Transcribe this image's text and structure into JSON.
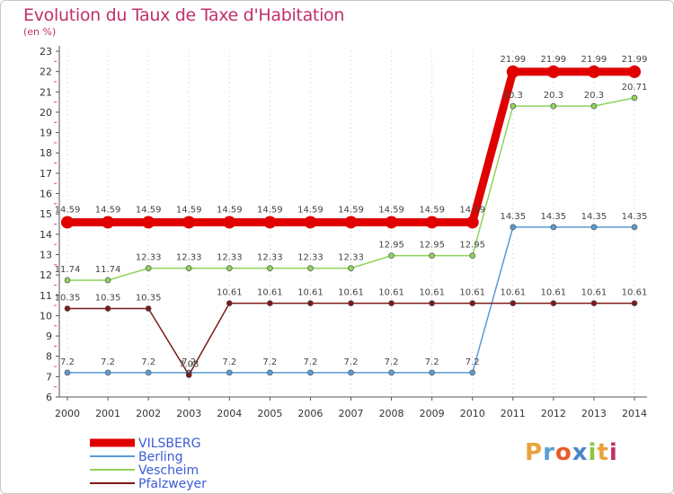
{
  "title": "Evolution du Taux de Taxe d'Habitation",
  "unit_label": "(en %)",
  "colors": {
    "title": "#c0306a",
    "axis": "#555555",
    "gridDot": "#cccccc"
  },
  "logo": {
    "letters": [
      "P",
      "r",
      "o",
      "x",
      "i",
      "t",
      "i"
    ],
    "colors": [
      "#e8a43a",
      "#5aa0d6",
      "#e65c2a",
      "#4a86c8",
      "#8cc63f",
      "#e8a43a",
      "#c0306a"
    ]
  },
  "chart_data": {
    "type": "line",
    "title": "Evolution du Taux de Taxe d'Habitation",
    "ylabel": "(en %)",
    "xlabel": "",
    "x": [
      "2000",
      "2001",
      "2002",
      "2003",
      "2004",
      "2005",
      "2006",
      "2007",
      "2008",
      "2009",
      "2010",
      "2011",
      "2012",
      "2013",
      "2014"
    ],
    "ylim": [
      6,
      23
    ],
    "yticks": [
      "6",
      "7",
      "8",
      "9",
      "10",
      "11",
      "12",
      "13",
      "14",
      "15",
      "16",
      "17",
      "18",
      "19",
      "20",
      "21",
      "22",
      "23"
    ],
    "grid": false,
    "legend_position": "bottom-left",
    "series": [
      {
        "name": "VILSBERG",
        "color": "#e00000",
        "emphasis": true,
        "values": [
          14.59,
          14.59,
          14.59,
          14.59,
          14.59,
          14.59,
          14.59,
          14.59,
          14.59,
          14.59,
          14.59,
          21.99,
          21.99,
          21.99,
          21.99
        ],
        "labels": [
          "14.59",
          "14.59",
          "14.59",
          "14.59",
          "14.59",
          "14.59",
          "14.59",
          "14.59",
          "14.59",
          "14.59",
          "14.59",
          "21.99",
          "21.99",
          "21.99",
          "21.99"
        ]
      },
      {
        "name": "Berling",
        "color": "#5b9bd5",
        "emphasis": false,
        "values": [
          7.2,
          7.2,
          7.2,
          7.2,
          7.2,
          7.2,
          7.2,
          7.2,
          7.2,
          7.2,
          7.2,
          14.35,
          14.35,
          14.35,
          14.35
        ],
        "labels": [
          "7.2",
          "7.2",
          "7.2",
          "7.2",
          "7.2",
          "7.2",
          "7.2",
          "7.2",
          "7.2",
          "7.2",
          "7.2",
          "14.35",
          "14.35",
          "14.35",
          "14.35"
        ]
      },
      {
        "name": "Vescheim",
        "color": "#8ed45a",
        "emphasis": false,
        "values": [
          11.74,
          11.74,
          12.33,
          12.33,
          12.33,
          12.33,
          12.33,
          12.33,
          12.95,
          12.95,
          12.95,
          20.3,
          20.3,
          20.3,
          20.71
        ],
        "labels": [
          "11.74",
          "11.74",
          "12.33",
          "12.33",
          "12.33",
          "12.33",
          "12.33",
          "12.33",
          "12.95",
          "12.95",
          "12.95",
          "20.3",
          "20.3",
          "20.3",
          "20.71"
        ]
      },
      {
        "name": "Pfalzweyer",
        "color": "#7b1a1a",
        "emphasis": false,
        "values": [
          10.35,
          10.35,
          10.35,
          7.08,
          10.61,
          10.61,
          10.61,
          10.61,
          10.61,
          10.61,
          10.61,
          10.61,
          10.61,
          10.61,
          10.61
        ],
        "labels": [
          "10.35",
          "10.35",
          "10.35",
          "7.08",
          "10.61",
          "10.61",
          "10.61",
          "10.61",
          "10.61",
          "10.61",
          "10.61",
          "10.61",
          "10.61",
          "10.61",
          "10.61"
        ]
      }
    ]
  }
}
